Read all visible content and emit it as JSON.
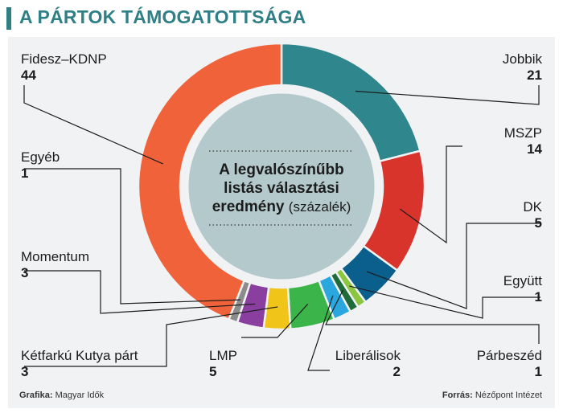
{
  "header": {
    "title": "A PÁRTOK TÁMOGATOTTSÁGA",
    "accent_color": "#2f7f86"
  },
  "center": {
    "line1": "A legvalószínűbb",
    "line2": "listás választási",
    "line3_bold": "eredmény",
    "line3_rest": "(százalék)"
  },
  "footer": {
    "left_label": "Grafika:",
    "left_value": "Magyar Idők",
    "right_label": "Forrás:",
    "right_value": "Nézőpont Intézet"
  },
  "chart_data": {
    "type": "pie",
    "variant": "donut",
    "unit": "százalék",
    "slices": [
      {
        "name": "Jobbik",
        "value": 21,
        "color": "#2f868c"
      },
      {
        "name": "MSZP",
        "value": 14,
        "color": "#d8342c"
      },
      {
        "name": "DK",
        "value": 5,
        "color": "#0a5f8c"
      },
      {
        "name": "Együtt",
        "value": 1,
        "color": "#8cc63f"
      },
      {
        "name": "Párbeszéd",
        "value": 1,
        "color": "#1f6b3a"
      },
      {
        "name": "Liberálisok",
        "value": 2,
        "color": "#2aa7de"
      },
      {
        "name": "LMP",
        "value": 5,
        "color": "#3bb54a"
      },
      {
        "name": "Kétfarkú Kutya párt",
        "value": 3,
        "color": "#f0c419"
      },
      {
        "name": "Momentum",
        "value": 3,
        "color": "#8a3fa0"
      },
      {
        "name": "Egyéb",
        "value": 1,
        "color": "#8c8c8c"
      },
      {
        "name": "Fidesz–KDNP",
        "value": 44,
        "color": "#f0633a"
      }
    ]
  }
}
